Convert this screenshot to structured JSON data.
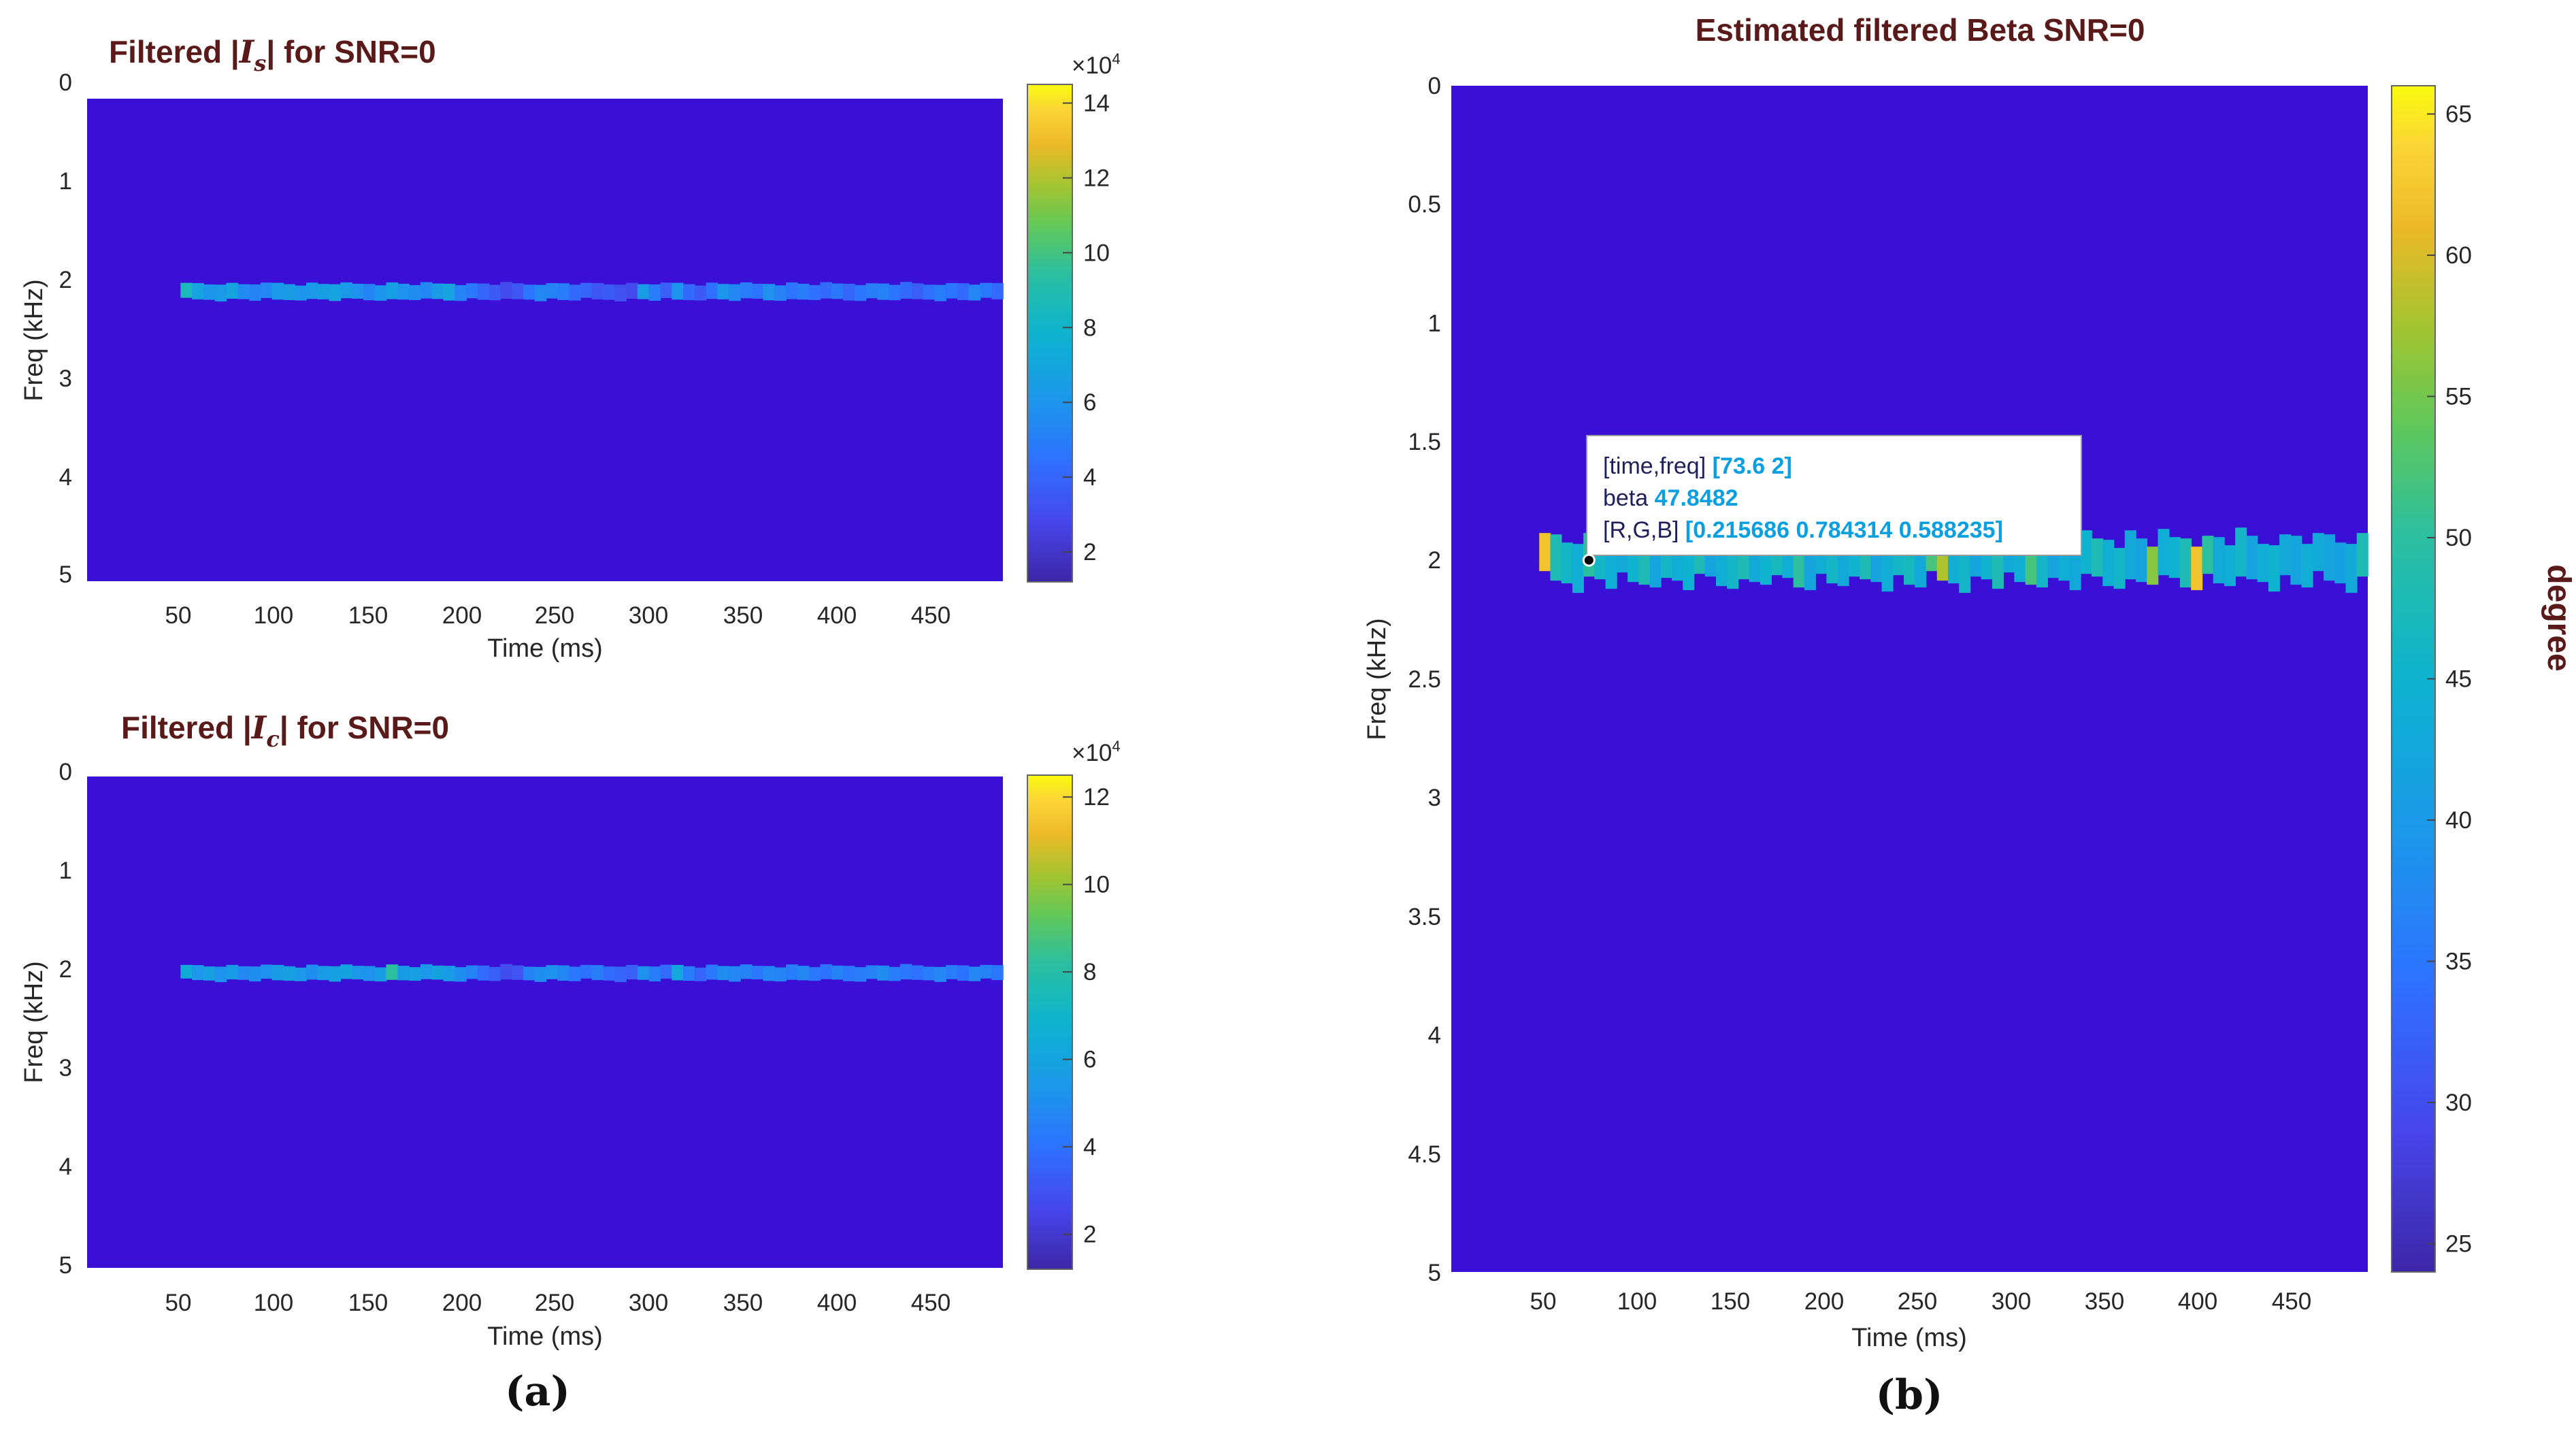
{
  "chart_data": [
    {
      "id": "a1",
      "type": "heatmap",
      "title_prefix": "Filtered |",
      "title_symbol": "I",
      "title_subscript": "s",
      "title_suffix": "| for SNR=0",
      "xlabel": "Time (ms)",
      "ylabel": "Freq (kHz)",
      "xticks": [
        50,
        100,
        150,
        200,
        250,
        300,
        350,
        400,
        450
      ],
      "yticks": [
        "0",
        "1",
        "2",
        "3",
        "4",
        "5"
      ],
      "xlim": [
        0,
        490
      ],
      "ylim": [
        0,
        5
      ],
      "colorbar": {
        "min": 1.2,
        "max": 14.5,
        "ticks": [
          "2",
          "4",
          "6",
          "8",
          "10",
          "12",
          "14"
        ],
        "exponent_base": "×10",
        "exponent": "4"
      },
      "band": {
        "freq_khz": 2,
        "time_start": 50,
        "time_end": 490,
        "values": [
          8.6,
          6.8,
          6.0,
          6.2,
          6.8,
          5.6,
          5.2,
          5.4,
          6.2,
          6.4,
          6.0,
          6.2,
          6.6,
          6.8,
          6.2,
          5.8,
          5.2,
          6.0,
          6.6,
          5.8,
          5.6,
          5.4,
          6.4,
          6.8,
          5.2,
          4.8,
          4.0,
          3.6,
          3.0,
          3.4,
          4.6,
          5.4,
          5.2,
          5.0,
          4.2,
          4.0,
          3.4,
          3.6,
          3.2,
          3.0,
          6.4,
          5.0,
          3.8,
          6.0,
          4.2,
          3.6,
          4.4,
          6.0,
          5.4,
          5.0,
          4.6,
          5.8,
          5.2,
          4.6,
          5.0,
          4.4,
          4.2,
          4.8,
          4.0,
          4.6,
          5.0,
          5.2,
          4.6,
          4.2,
          3.8,
          4.4,
          5.0,
          4.6,
          4.2,
          5.4,
          4.8,
          4.2
        ]
      }
    },
    {
      "id": "a2",
      "type": "heatmap",
      "title_prefix": "Filtered |",
      "title_symbol": "I",
      "title_subscript": "c",
      "title_suffix": "| for SNR=0",
      "xlabel": "Time (ms)",
      "ylabel": "Freq (kHz)",
      "xticks": [
        50,
        100,
        150,
        200,
        250,
        300,
        350,
        400,
        450
      ],
      "yticks": [
        "0",
        "1",
        "2",
        "3",
        "4",
        "5"
      ],
      "xlim": [
        0,
        490
      ],
      "ylim": [
        0,
        5
      ],
      "colorbar": {
        "min": 1.2,
        "max": 12.5,
        "ticks": [
          "2",
          "4",
          "6",
          "8",
          "10",
          "12"
        ],
        "exponent_base": "×10",
        "exponent": "4"
      },
      "band": {
        "freq_khz": 2,
        "time_start": 50,
        "time_end": 490,
        "values": [
          6.4,
          5.4,
          5.8,
          5.2,
          5.6,
          4.8,
          5.0,
          5.2,
          5.6,
          5.8,
          5.4,
          5.0,
          5.6,
          5.8,
          6.0,
          5.4,
          5.2,
          5.6,
          8.2,
          5.6,
          5.8,
          5.4,
          6.0,
          5.6,
          5.0,
          4.6,
          3.8,
          3.4,
          2.8,
          3.0,
          4.6,
          5.0,
          5.2,
          4.8,
          4.2,
          4.0,
          4.4,
          3.8,
          3.6,
          3.4,
          5.2,
          4.4,
          3.8,
          6.2,
          4.4,
          3.6,
          4.2,
          5.0,
          4.8,
          4.6,
          4.2,
          4.8,
          4.6,
          4.4,
          4.8,
          4.2,
          4.0,
          4.6,
          4.2,
          4.4,
          4.6,
          5.0,
          4.4,
          4.2,
          4.0,
          4.4,
          4.8,
          4.4,
          4.0,
          4.8,
          4.6,
          4.2
        ]
      }
    },
    {
      "id": "b",
      "type": "heatmap",
      "title": "Estimated filtered Beta SNR=0",
      "xlabel": "Time (ms)",
      "ylabel": "Freq (kHz)",
      "xticks": [
        50,
        100,
        150,
        200,
        250,
        300,
        350,
        400,
        450
      ],
      "yticks": [
        "0",
        "0.5",
        "1",
        "1.5",
        "2",
        "2.5",
        "3",
        "3.5",
        "4",
        "4.5",
        "5"
      ],
      "xlim": [
        0,
        490
      ],
      "ylim": [
        0,
        5
      ],
      "colorbar": {
        "min": 24,
        "max": 66,
        "ticks": [
          "25",
          "30",
          "35",
          "40",
          "45",
          "50",
          "55",
          "60",
          "65"
        ],
        "label": "degree"
      },
      "band": {
        "freq_khz": 2,
        "time_start": 47,
        "time_end": 490,
        "values": [
          62,
          48,
          46,
          44,
          50,
          46,
          44,
          43,
          45,
          48,
          42,
          46,
          44,
          45,
          48,
          42,
          44,
          46,
          48,
          43,
          45,
          47,
          44,
          50,
          42,
          44,
          46,
          43,
          45,
          48,
          42,
          44,
          46,
          47,
          43,
          52,
          58,
          44,
          46,
          42,
          45,
          48,
          43,
          44,
          52,
          46,
          42,
          44,
          43,
          45,
          48,
          44,
          46,
          43,
          42,
          56,
          44,
          45,
          48,
          62,
          50,
          43,
          44,
          46,
          42,
          44,
          45,
          43,
          42,
          44,
          43,
          42,
          41,
          43,
          48
        ]
      },
      "datatip": {
        "line1_key": "[time,freq]",
        "line1_val": "[73.6 2]",
        "line2_key": "beta",
        "line2_val": "47.8482",
        "line3_key": "[R,G,B]",
        "line3_val": "[0.215686 0.784314 0.588235]",
        "time": 73.6,
        "freq": 2
      }
    }
  ],
  "panel_labels": {
    "a": "(a)",
    "b": "(b)"
  },
  "colors": {
    "background": "#3a0fd6",
    "axis_text": "#262626",
    "title": "#5a1a1a"
  }
}
